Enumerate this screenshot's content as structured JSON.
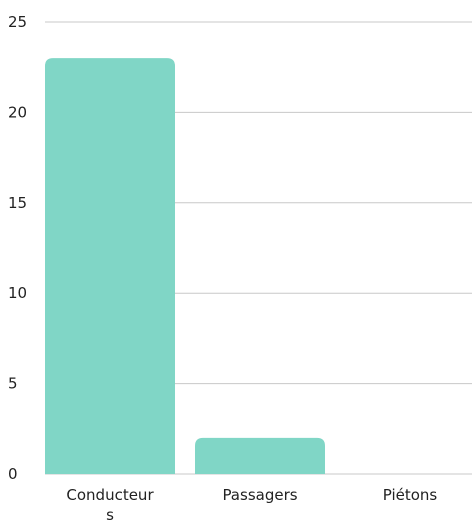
{
  "chart_data": {
    "type": "bar",
    "categories": [
      "Conducteurs",
      "Passagers",
      "Piétons"
    ],
    "category_labels_wrapped": [
      [
        "Conducteur",
        "s"
      ],
      [
        "Passagers"
      ],
      [
        "Piétons"
      ]
    ],
    "values": [
      23,
      2,
      0
    ],
    "ylim": [
      0,
      25
    ],
    "yticks": [
      0,
      5,
      10,
      15,
      20,
      25
    ],
    "title": "",
    "xlabel": "",
    "ylabel": "",
    "grid": true,
    "legend": "none",
    "colors": {
      "bar": "#80d6c6",
      "grid": "#c8c8c8",
      "text": "#222222"
    }
  }
}
